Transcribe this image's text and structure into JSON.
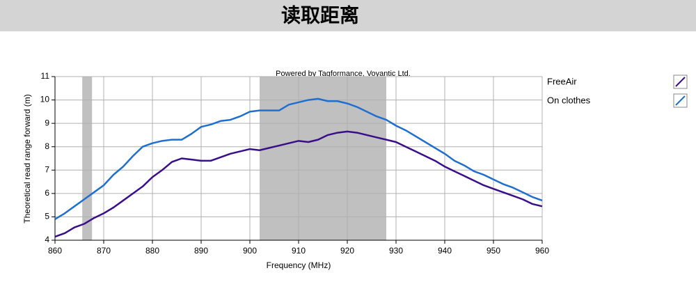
{
  "chart_data": {
    "type": "line",
    "title": "读取距离",
    "annotation": "Powered by Tagformance, Voyantic Ltd.",
    "x_label": "Frequency (MHz)",
    "y_label": "Theoretical read range forward (m)",
    "x": [
      860,
      862,
      864,
      866,
      868,
      870,
      872,
      874,
      876,
      878,
      880,
      882,
      884,
      886,
      888,
      890,
      892,
      894,
      896,
      898,
      900,
      902,
      904,
      906,
      908,
      910,
      912,
      914,
      916,
      918,
      920,
      922,
      924,
      926,
      928,
      930,
      932,
      934,
      936,
      938,
      940,
      942,
      944,
      946,
      948,
      950,
      952,
      954,
      956,
      958,
      960
    ],
    "series": [
      {
        "name": "FreeAir",
        "color": "#3a0e8a",
        "values": [
          4.15,
          4.3,
          4.55,
          4.7,
          4.95,
          5.15,
          5.4,
          5.7,
          6.0,
          6.3,
          6.7,
          7.0,
          7.35,
          7.5,
          7.45,
          7.4,
          7.4,
          7.55,
          7.7,
          7.8,
          7.9,
          7.85,
          7.95,
          8.05,
          8.15,
          8.25,
          8.2,
          8.3,
          8.5,
          8.6,
          8.65,
          8.6,
          8.5,
          8.4,
          8.3,
          8.2,
          8.0,
          7.8,
          7.6,
          7.4,
          7.15,
          6.95,
          6.75,
          6.55,
          6.35,
          6.2,
          6.05,
          5.9,
          5.75,
          5.55,
          5.45
        ]
      },
      {
        "name": "On clothes",
        "color": "#1f6fd0",
        "values": [
          4.9,
          5.15,
          5.45,
          5.75,
          6.05,
          6.35,
          6.8,
          7.15,
          7.6,
          8.0,
          8.15,
          8.25,
          8.3,
          8.3,
          8.55,
          8.85,
          8.95,
          9.1,
          9.15,
          9.3,
          9.5,
          9.55,
          9.55,
          9.55,
          9.8,
          9.9,
          10.0,
          10.05,
          9.95,
          9.95,
          9.85,
          9.7,
          9.5,
          9.3,
          9.15,
          8.9,
          8.7,
          8.45,
          8.2,
          7.95,
          7.7,
          7.4,
          7.2,
          6.95,
          6.8,
          6.6,
          6.4,
          6.25,
          6.05,
          5.85,
          5.7
        ]
      }
    ],
    "bands": [
      [
        865.6,
        867.6
      ],
      [
        902,
        928
      ]
    ],
    "band_color": "#c0c0c0",
    "xlim": [
      860,
      960
    ],
    "xticks": [
      860,
      870,
      880,
      890,
      900,
      910,
      920,
      930,
      940,
      950,
      960
    ],
    "ylim": [
      4,
      11
    ],
    "yticks": [
      4,
      5,
      6,
      7,
      8,
      9,
      10,
      11
    ],
    "grid": true
  }
}
